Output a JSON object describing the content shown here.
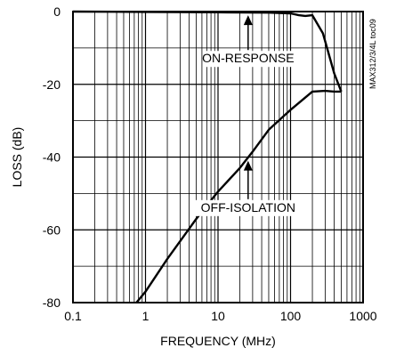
{
  "chart_data": {
    "type": "line",
    "title": "",
    "xlabel": "FREQUENCY (MHz)",
    "ylabel": "LOSS (dB)",
    "x_scale": "log",
    "xlim": [
      0.1,
      1000
    ],
    "ylim": [
      -80,
      0
    ],
    "x_ticks": [
      0.1,
      1,
      10,
      100,
      1000
    ],
    "x_tick_labels": [
      "0.1",
      "1",
      "10",
      "100",
      "1000"
    ],
    "y_ticks": [
      0,
      -20,
      -40,
      -60,
      -80
    ],
    "y_tick_labels": [
      "0",
      "-20",
      "-40",
      "-60",
      "-80"
    ],
    "grid": true,
    "series": [
      {
        "name": "ON-RESPONSE",
        "x": [
          0.1,
          1,
          10,
          50,
          100,
          130,
          160,
          200,
          280,
          400,
          500
        ],
        "y": [
          0,
          -0.1,
          -0.2,
          -0.3,
          -0.5,
          -1.0,
          -1.2,
          -1.0,
          -6,
          -17,
          -22
        ]
      },
      {
        "name": "OFF-ISOLATION",
        "x": [
          0.75,
          1,
          2,
          5,
          10,
          20,
          30,
          50,
          100,
          200,
          300,
          400,
          500
        ],
        "y": [
          -80,
          -77,
          -68,
          -57,
          -49.5,
          -43,
          -38.5,
          -32.5,
          -27,
          -22,
          -21.8,
          -22,
          -22
        ]
      }
    ],
    "annotations": [
      {
        "text": "ON-RESPONSE",
        "x": 26,
        "y": -14,
        "arrow_to_y": -1
      },
      {
        "text": "OFF-ISOLATION",
        "x": 26,
        "y": -55,
        "arrow_to_y": -41
      }
    ],
    "side_code": "MAX312/3/4L toc09"
  }
}
